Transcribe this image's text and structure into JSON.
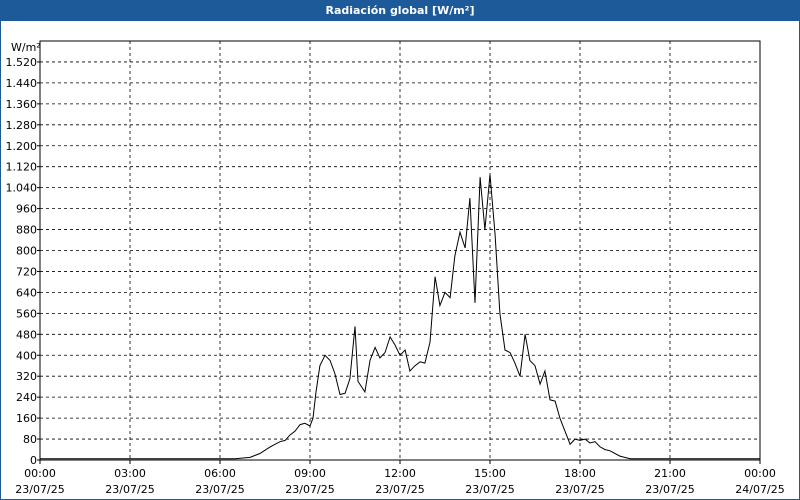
{
  "window_title": "Radiación global [W/m²]",
  "chart_data": {
    "type": "line",
    "y_unit": "W/m²",
    "color": "#000000",
    "grid": true,
    "xlim": [
      0,
      24
    ],
    "ylim": [
      0,
      1600
    ],
    "xticks": [
      {
        "value": 0,
        "label": "00:00",
        "date": "23/07/25"
      },
      {
        "value": 3,
        "label": "03:00",
        "date": "23/07/25"
      },
      {
        "value": 6,
        "label": "06:00",
        "date": "23/07/25"
      },
      {
        "value": 9,
        "label": "09:00",
        "date": "23/07/25"
      },
      {
        "value": 12,
        "label": "12:00",
        "date": "23/07/25"
      },
      {
        "value": 15,
        "label": "15:00",
        "date": "23/07/25"
      },
      {
        "value": 18,
        "label": "18:00",
        "date": "23/07/25"
      },
      {
        "value": 21,
        "label": "21:00",
        "date": "23/07/25"
      },
      {
        "value": 24,
        "label": "00:00",
        "date": "24/07/25"
      }
    ],
    "yticks": [
      0,
      80,
      160,
      240,
      320,
      400,
      480,
      560,
      640,
      720,
      800,
      880,
      960,
      {
        "value": 1040,
        "label": "1.040"
      },
      {
        "value": 1120,
        "label": "1.120"
      },
      {
        "value": 1200,
        "label": "1.200"
      },
      {
        "value": 1280,
        "label": "1.280"
      },
      {
        "value": 1360,
        "label": "1.360"
      },
      {
        "value": 1440,
        "label": "1.440"
      },
      {
        "value": 1520,
        "label": "1.520"
      }
    ],
    "x": [
      0,
      6.5,
      7,
      7.33,
      7.67,
      8.0,
      8.17,
      8.33,
      8.5,
      8.67,
      8.83,
      9.0,
      9.1,
      9.2,
      9.33,
      9.5,
      9.67,
      9.83,
      10.0,
      10.17,
      10.33,
      10.5,
      10.6,
      10.83,
      11.0,
      11.17,
      11.33,
      11.5,
      11.67,
      11.83,
      12.0,
      12.17,
      12.33,
      12.5,
      12.67,
      12.83,
      13.0,
      13.17,
      13.33,
      13.5,
      13.67,
      13.83,
      14.0,
      14.17,
      14.33,
      14.5,
      14.67,
      14.83,
      15.0,
      15.17,
      15.33,
      15.5,
      15.67,
      15.83,
      16.0,
      16.17,
      16.33,
      16.5,
      16.67,
      16.83,
      17.0,
      17.17,
      17.33,
      17.5,
      17.67,
      17.83,
      18.0,
      18.17,
      18.33,
      18.5,
      18.67,
      18.83,
      19.0,
      19.33,
      19.67,
      24
    ],
    "values": [
      5,
      5,
      10,
      25,
      50,
      70,
      75,
      95,
      110,
      135,
      140,
      130,
      160,
      260,
      360,
      400,
      380,
      330,
      250,
      255,
      310,
      510,
      300,
      260,
      380,
      430,
      390,
      410,
      470,
      440,
      400,
      420,
      340,
      360,
      375,
      370,
      450,
      700,
      590,
      640,
      620,
      780,
      870,
      810,
      1000,
      600,
      1080,
      880,
      1090,
      860,
      560,
      420,
      410,
      370,
      320,
      480,
      380,
      360,
      290,
      340,
      230,
      225,
      160,
      110,
      60,
      80,
      75,
      80,
      65,
      70,
      50,
      40,
      35,
      15,
      5,
      5
    ]
  }
}
